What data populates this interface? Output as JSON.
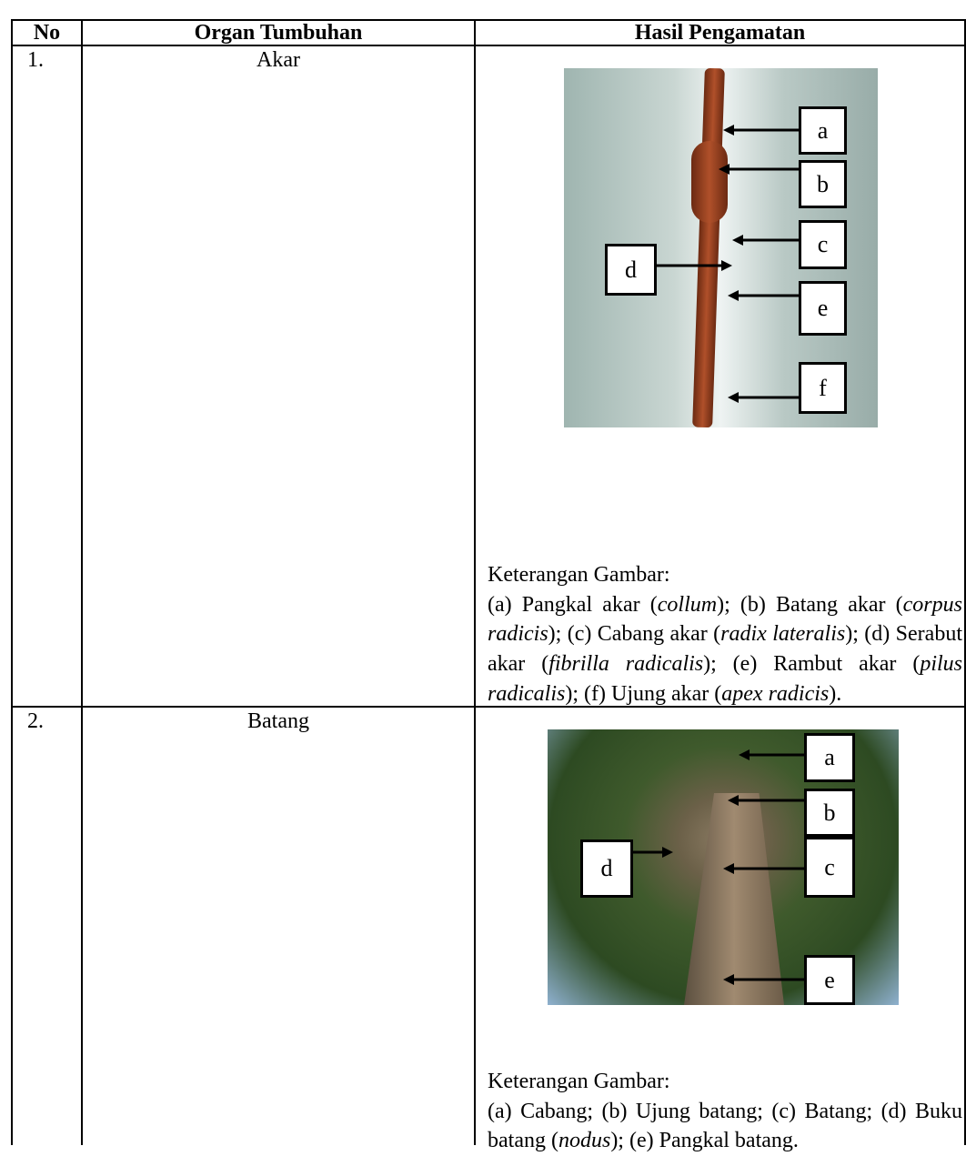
{
  "table": {
    "header": [
      "No",
      "Organ Tumbuhan",
      "Hasil Pengamatan"
    ],
    "rows": [
      {
        "no": "1.",
        "organ": "Akar",
        "labels": [
          "a",
          "b",
          "c",
          "d",
          "e",
          "f"
        ],
        "caption_heading": "Keterangan Gambar:",
        "caption": [
          "(a) Pangkal akar (",
          "collum",
          "); (b) Batang akar (",
          "corpus radicis",
          "); (c) Cabang akar (",
          "radix lateralis",
          "); (d) Serabut akar (",
          "fibrilla radicalis",
          "); (e) Rambut akar (",
          "pilus radicalis",
          "); (f) Ujung akar (",
          "apex radicis",
          ")."
        ]
      },
      {
        "no": "2.",
        "organ": "Batang",
        "labels": [
          "a",
          "b",
          "c",
          "d",
          "e"
        ],
        "caption_heading": "Keterangan Gambar:",
        "caption": [
          "(a) Cabang; (b) Ujung batang; (c) Batang; (d) Buku batang (",
          "nodus",
          "); (e) Pangkal batang."
        ]
      }
    ]
  }
}
